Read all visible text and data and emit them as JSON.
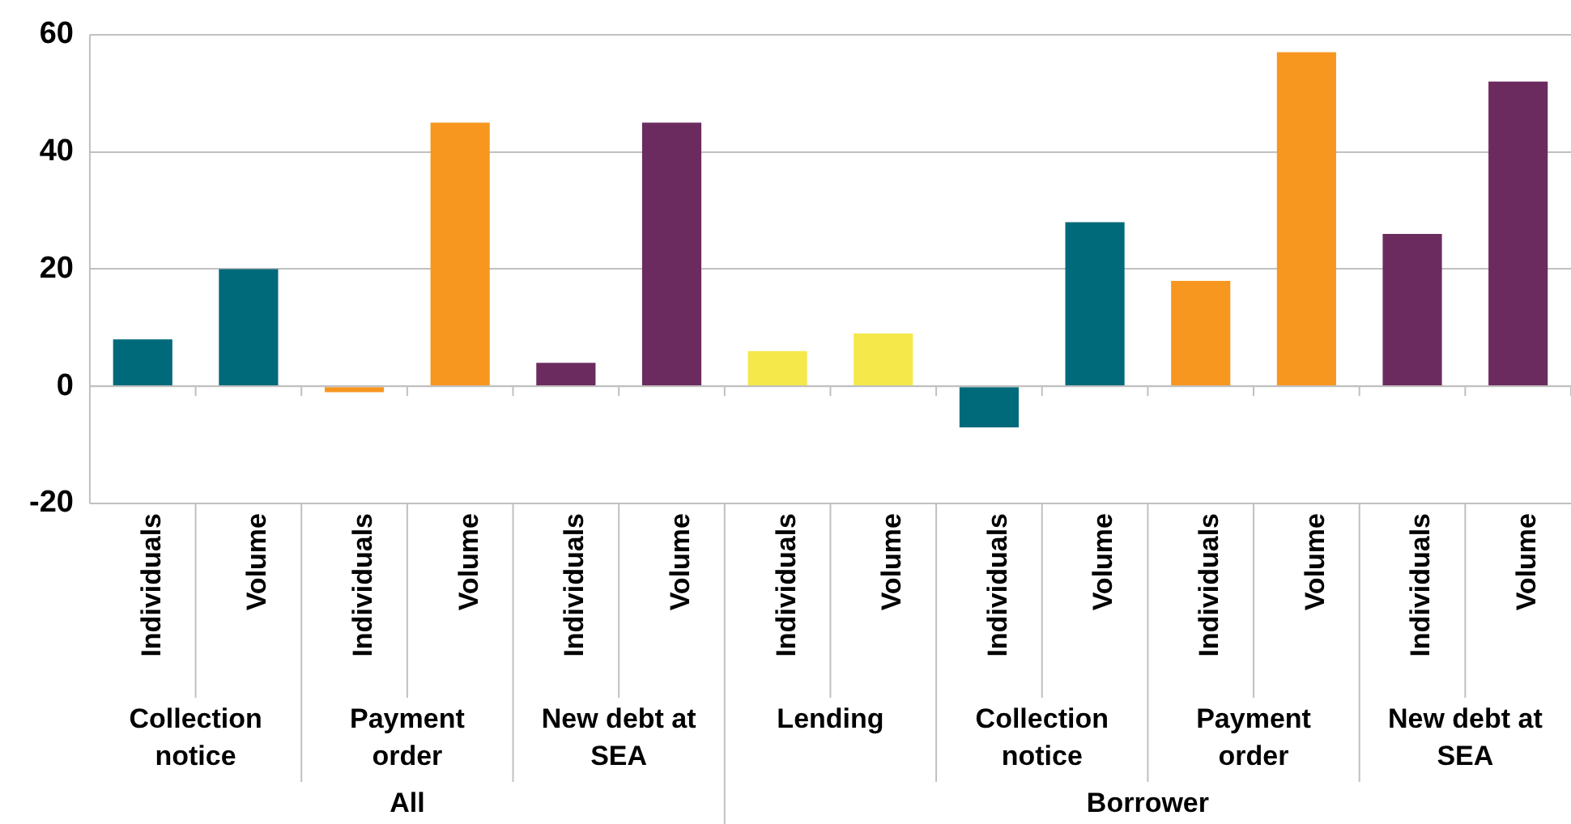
{
  "chart_data": {
    "type": "bar",
    "categories": [
      "Individuals",
      "Volume",
      "Individuals",
      "Volume",
      "Individuals",
      "Volume",
      "Individuals",
      "Volume",
      "Individuals",
      "Volume",
      "Individuals",
      "Volume",
      "Individuals",
      "Volume"
    ],
    "values": [
      8,
      20,
      -1,
      45,
      4,
      45,
      6,
      9,
      -7,
      28,
      18,
      57,
      26,
      52
    ],
    "colors": [
      "#006a7a",
      "#006a7a",
      "#f79720",
      "#f79720",
      "#6c2b5e",
      "#6c2b5e",
      "#f5e84a",
      "#f5e84a",
      "#006a7a",
      "#006a7a",
      "#f79720",
      "#f79720",
      "#6c2b5e",
      "#6c2b5e"
    ],
    "ylim": [
      -20,
      60
    ],
    "yticks": [
      -20,
      0,
      20,
      40,
      60
    ],
    "grid": "y",
    "legend": false,
    "annotations": [
      "Collection notice",
      "Payment order",
      "New debt at SEA",
      "Lending",
      "Collection notice",
      "Payment order",
      "New debt at SEA",
      "All",
      "Borrower"
    ]
  }
}
